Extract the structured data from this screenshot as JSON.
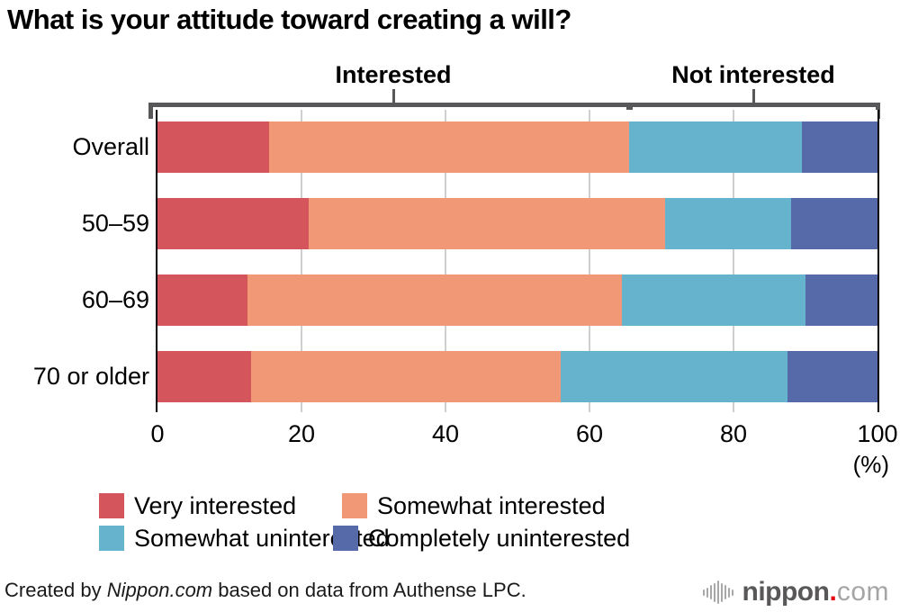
{
  "title": "What is your attitude toward creating a will?",
  "chart_data": {
    "type": "bar",
    "orientation": "horizontal-stacked",
    "categories": [
      "Overall",
      "50–59",
      "60–69",
      "70 or older"
    ],
    "series": [
      {
        "name": "Very interested",
        "color": "#d4555b",
        "values": [
          15.5,
          21.0,
          12.5,
          13.0
        ]
      },
      {
        "name": "Somewhat interested",
        "color": "#f19877",
        "values": [
          50.0,
          49.5,
          52.0,
          43.0
        ]
      },
      {
        "name": "Somewhat uninterested",
        "color": "#66b3ce",
        "values": [
          24.0,
          17.5,
          25.5,
          31.5
        ]
      },
      {
        "name": "Completely uninterested",
        "color": "#5669a8",
        "values": [
          10.5,
          12.0,
          10.0,
          12.5
        ]
      }
    ],
    "x_ticks": [
      0,
      20,
      40,
      60,
      80,
      100
    ],
    "xlim": [
      0,
      100
    ],
    "unit_label": "(%)",
    "grid": true,
    "legend_position": "bottom",
    "group_brackets": [
      {
        "label": "Interested",
        "from": 0,
        "to": 65.5
      },
      {
        "label": "Not interested",
        "from": 65.5,
        "to": 100
      }
    ]
  },
  "footer": {
    "credit_prefix": "Created by ",
    "credit_source": "Nippon.com",
    "credit_suffix": " based on data from Authense LPC."
  },
  "logo": {
    "name_part": "nippon",
    "dot": ".",
    "tld_part": "com"
  },
  "colors": {
    "bracket": "#58585a",
    "gridline": "#cfcfcf",
    "axis_line": "#000000",
    "logo_dark": "#595757",
    "logo_light": "#a5a5a5",
    "logo_dot": "#e60012"
  }
}
